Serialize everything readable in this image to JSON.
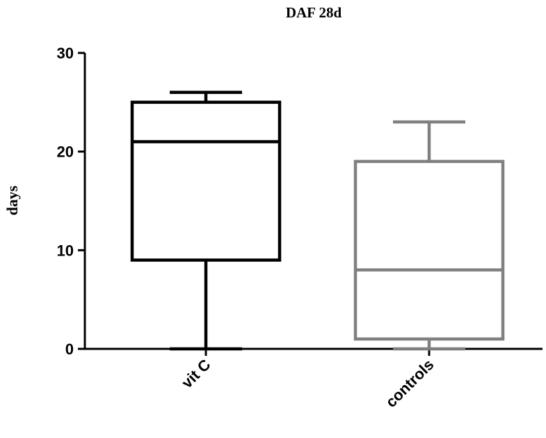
{
  "chart_data": {
    "type": "box",
    "title": "DAF 28d",
    "y_label": "days",
    "categories": [
      "vit C",
      "controls"
    ],
    "boxes": [
      {
        "min": 0,
        "q1": 9,
        "median": 21,
        "q3": 25,
        "max": 26,
        "color": "#000000"
      },
      {
        "min": 0,
        "q1": 1,
        "median": 8,
        "q3": 19,
        "max": 23,
        "color": "#808080"
      }
    ],
    "ylim": [
      0,
      30
    ],
    "yticks": [
      0,
      10,
      20,
      30
    ],
    "grid": false
  }
}
